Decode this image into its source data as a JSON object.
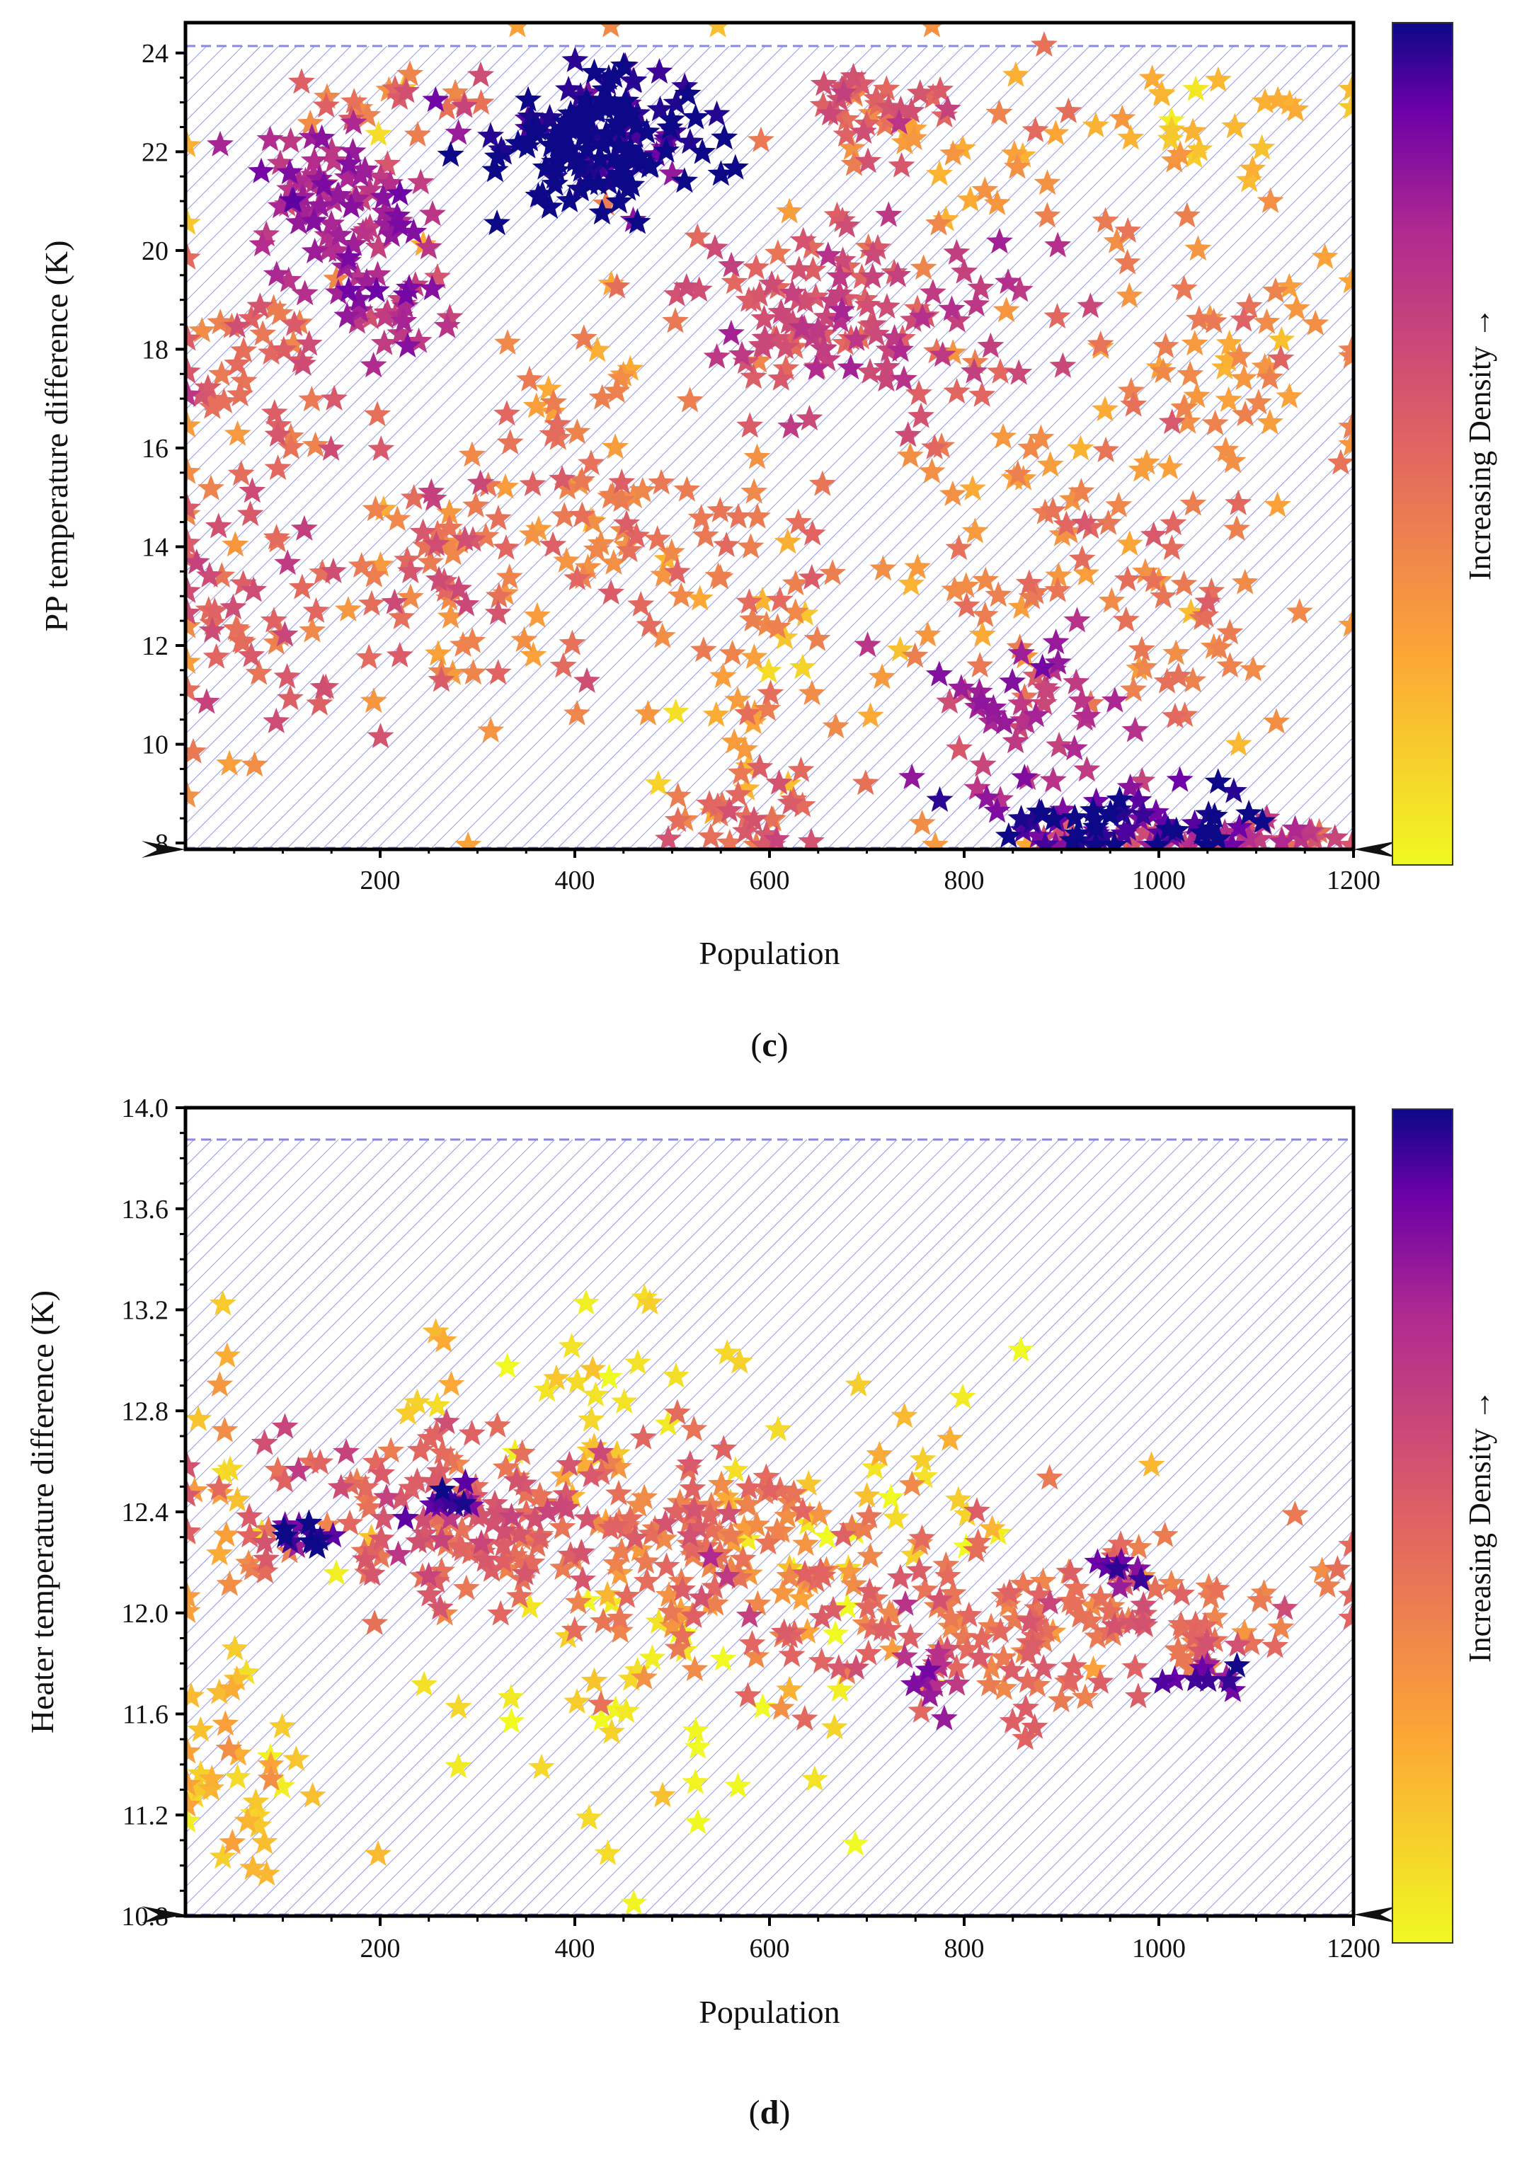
{
  "chart_data": [
    {
      "type": "scatter",
      "panel": "c",
      "caption_letter": "c",
      "xlabel": "Population",
      "ylabel": "PP temperature difference (K)",
      "xlim": [
        0,
        1200
      ],
      "ylim": [
        7.9,
        24.6
      ],
      "xticks": [
        200,
        400,
        600,
        800,
        1000,
        1200
      ],
      "yticks": [
        8,
        10,
        12,
        14,
        16,
        18,
        20,
        22,
        24
      ],
      "ytick_decimals": 0,
      "bounds": {
        "upper": 24.45,
        "lower": 7.95
      },
      "colorbar_label": "Increasing Density →",
      "marker": "star",
      "clusters": [
        {
          "x": 430,
          "y": 22.2,
          "sx": 55,
          "sy": 0.6,
          "n": 160,
          "d": 1.0
        },
        {
          "x": 170,
          "y": 20.5,
          "sx": 45,
          "sy": 0.8,
          "n": 60,
          "d": 0.78
        },
        {
          "x": 220,
          "y": 18.7,
          "sx": 30,
          "sy": 0.4,
          "n": 25,
          "d": 0.72
        },
        {
          "x": 150,
          "y": 21.5,
          "sx": 50,
          "sy": 0.5,
          "n": 25,
          "d": 0.7
        },
        {
          "x": 700,
          "y": 18.6,
          "sx": 90,
          "sy": 0.9,
          "n": 90,
          "d": 0.62
        },
        {
          "x": 620,
          "y": 19.0,
          "sx": 60,
          "sy": 0.8,
          "n": 30,
          "d": 0.55
        },
        {
          "x": 700,
          "y": 23.0,
          "sx": 40,
          "sy": 0.4,
          "n": 30,
          "d": 0.55
        },
        {
          "x": 980,
          "y": 8.4,
          "sx": 70,
          "sy": 0.5,
          "n": 70,
          "d": 0.95
        },
        {
          "x": 880,
          "y": 10.6,
          "sx": 60,
          "sy": 0.9,
          "n": 50,
          "d": 0.72
        },
        {
          "x": 1060,
          "y": 8.1,
          "sx": 90,
          "sy": 0.15,
          "n": 40,
          "d": 0.6
        },
        {
          "x": 80,
          "y": 17.5,
          "sx": 50,
          "sy": 1.5,
          "n": 45,
          "d": 0.5
        },
        {
          "x": 60,
          "y": 12.5,
          "sx": 50,
          "sy": 1.2,
          "n": 45,
          "d": 0.5
        },
        {
          "x": 270,
          "y": 13.5,
          "sx": 60,
          "sy": 1.5,
          "n": 60,
          "d": 0.45
        },
        {
          "x": 420,
          "y": 15.0,
          "sx": 60,
          "sy": 1.8,
          "n": 50,
          "d": 0.4
        },
        {
          "x": 580,
          "y": 14.0,
          "sx": 50,
          "sy": 2.2,
          "n": 40,
          "d": 0.4
        },
        {
          "x": 570,
          "y": 8.5,
          "sx": 50,
          "sy": 0.4,
          "n": 30,
          "d": 0.5
        },
        {
          "x": 850,
          "y": 15.0,
          "sx": 70,
          "sy": 2.0,
          "n": 45,
          "d": 0.4
        },
        {
          "x": 1020,
          "y": 12.5,
          "sx": 60,
          "sy": 2.0,
          "n": 45,
          "d": 0.4
        },
        {
          "x": 1080,
          "y": 17.5,
          "sx": 70,
          "sy": 1.8,
          "n": 50,
          "d": 0.35
        },
        {
          "x": 1050,
          "y": 22.5,
          "sx": 80,
          "sy": 0.7,
          "n": 25,
          "d": 0.2
        },
        {
          "x": 800,
          "y": 22.0,
          "sx": 60,
          "sy": 0.9,
          "n": 25,
          "d": 0.3
        },
        {
          "x": 200,
          "y": 23.0,
          "sx": 60,
          "sy": 0.3,
          "n": 20,
          "d": 0.45
        },
        {
          "x": 600,
          "y": 11.0,
          "sx": 80,
          "sy": 1.5,
          "n": 25,
          "d": 0.25
        },
        {
          "x": 600,
          "y": 16.0,
          "sx": 400,
          "sy": 4.5,
          "n": 80,
          "d": 0.3
        }
      ]
    },
    {
      "type": "scatter",
      "panel": "d",
      "caption_letter": "d",
      "xlabel": "Population",
      "ylabel": "Heater temperature difference (K)",
      "xlim": [
        0,
        1200
      ],
      "ylim": [
        10.8,
        14.0
      ],
      "xticks": [
        200,
        400,
        600,
        800,
        1000,
        1200
      ],
      "yticks": [
        10.8,
        11.2,
        11.6,
        12.0,
        12.4,
        12.8,
        13.2,
        13.6,
        14.0
      ],
      "ytick_decimals": 1,
      "bounds": {
        "upper": 13.91,
        "lower": 10.88
      },
      "colorbar_label": "Increasing Density →",
      "marker": "star",
      "clusters": [
        {
          "x": 300,
          "y": 12.4,
          "sx": 130,
          "sy": 0.17,
          "n": 160,
          "d": 0.5
        },
        {
          "x": 115,
          "y": 12.31,
          "sx": 15,
          "sy": 0.04,
          "n": 14,
          "d": 0.95
        },
        {
          "x": 270,
          "y": 12.44,
          "sx": 18,
          "sy": 0.04,
          "n": 12,
          "d": 0.92
        },
        {
          "x": 560,
          "y": 12.25,
          "sx": 110,
          "sy": 0.22,
          "n": 120,
          "d": 0.4
        },
        {
          "x": 900,
          "y": 11.95,
          "sx": 140,
          "sy": 0.18,
          "n": 170,
          "d": 0.45
        },
        {
          "x": 1060,
          "y": 11.73,
          "sx": 25,
          "sy": 0.03,
          "n": 10,
          "d": 0.9
        },
        {
          "x": 960,
          "y": 12.15,
          "sx": 18,
          "sy": 0.03,
          "n": 8,
          "d": 0.88
        },
        {
          "x": 770,
          "y": 11.75,
          "sx": 30,
          "sy": 0.06,
          "n": 12,
          "d": 0.75
        },
        {
          "x": 70,
          "y": 11.3,
          "sx": 30,
          "sy": 0.2,
          "n": 25,
          "d": 0.15
        },
        {
          "x": 450,
          "y": 11.6,
          "sx": 120,
          "sy": 0.3,
          "n": 45,
          "d": 0.05
        },
        {
          "x": 400,
          "y": 12.9,
          "sx": 100,
          "sy": 0.2,
          "n": 30,
          "d": 0.1
        },
        {
          "x": 40,
          "y": 12.0,
          "sx": 30,
          "sy": 0.5,
          "n": 30,
          "d": 0.2
        },
        {
          "x": 650,
          "y": 12.5,
          "sx": 120,
          "sy": 0.3,
          "n": 35,
          "d": 0.1
        }
      ]
    }
  ]
}
